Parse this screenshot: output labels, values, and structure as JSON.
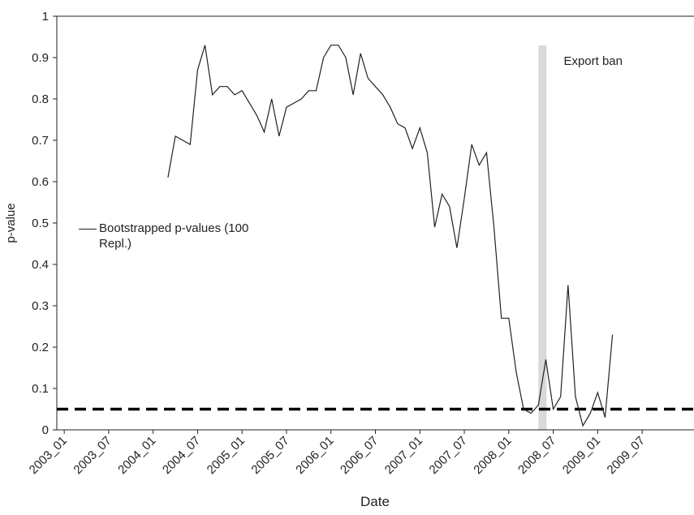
{
  "chart_data": {
    "type": "line",
    "y_label": "p-value",
    "x_label": "Date",
    "x": [
      "2004_03",
      "2004_04",
      "2004_05",
      "2004_06",
      "2004_07",
      "2004_08",
      "2004_09",
      "2004_10",
      "2004_11",
      "2004_12",
      "2005_01",
      "2005_02",
      "2005_03",
      "2005_04",
      "2005_05",
      "2005_06",
      "2005_07",
      "2005_08",
      "2005_09",
      "2005_10",
      "2005_11",
      "2005_12",
      "2006_01",
      "2006_02",
      "2006_03",
      "2006_04",
      "2006_05",
      "2006_06",
      "2006_07",
      "2006_08",
      "2006_09",
      "2006_10",
      "2006_11",
      "2006_12",
      "2007_01",
      "2007_02",
      "2007_03",
      "2007_04",
      "2007_05",
      "2007_06",
      "2007_07",
      "2007_08",
      "2007_09",
      "2007_10",
      "2007_11",
      "2007_12",
      "2008_01",
      "2008_02",
      "2008_03",
      "2008_04",
      "2008_05",
      "2008_06",
      "2008_07",
      "2008_08",
      "2008_09",
      "2008_10",
      "2008_11",
      "2008_12",
      "2009_01",
      "2009_02",
      "2009_03"
    ],
    "series": [
      {
        "name": "Bootstrapped p-values (100 Repl.)",
        "color": "#222222",
        "values": [
          0.61,
          0.71,
          0.7,
          0.69,
          0.87,
          0.93,
          0.81,
          0.83,
          0.83,
          0.81,
          0.82,
          0.79,
          0.76,
          0.72,
          0.8,
          0.71,
          0.78,
          0.79,
          0.8,
          0.82,
          0.82,
          0.9,
          0.93,
          0.93,
          0.9,
          0.81,
          0.91,
          0.85,
          0.83,
          0.81,
          0.78,
          0.74,
          0.73,
          0.68,
          0.73,
          0.67,
          0.49,
          0.57,
          0.54,
          0.44,
          0.56,
          0.69,
          0.64,
          0.67,
          0.49,
          0.27,
          0.27,
          0.14,
          0.05,
          0.04,
          0.06,
          0.17,
          0.05,
          0.08,
          0.35,
          0.08,
          0.01,
          0.04,
          0.09,
          0.03,
          0.23
        ]
      }
    ],
    "xlim": [
      "2002_12",
      "2010_02"
    ],
    "xticks": [
      "2003_01",
      "2003_07",
      "2004_01",
      "2004_07",
      "2005_01",
      "2005_07",
      "2006_01",
      "2006_07",
      "2007_01",
      "2007_07",
      "2008_01",
      "2008_07",
      "2009_01",
      "2009_07"
    ],
    "ylim": [
      0,
      1
    ],
    "yticks": [
      0,
      0.1,
      0.2,
      0.3,
      0.4,
      0.5,
      0.6,
      0.7,
      0.8,
      0.9,
      1
    ],
    "threshold": 0.05,
    "band": {
      "from": "2008_05",
      "to": "2008_06",
      "label": "Export ban"
    }
  }
}
